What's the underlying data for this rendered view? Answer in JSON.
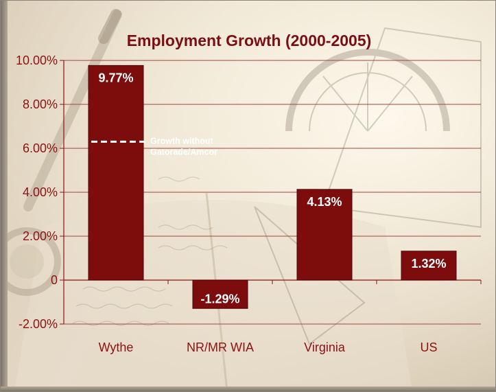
{
  "chart_data": {
    "type": "bar",
    "title": "Employment Growth (2000-2005)",
    "categories": [
      "Wythe",
      "NR/MR WIA",
      "Virginia",
      "US"
    ],
    "values": [
      9.77,
      -1.29,
      4.13,
      1.32
    ],
    "data_labels": [
      "9.77%",
      "-1.29%",
      "4.13%",
      "1.32%"
    ],
    "ylim": [
      -2,
      10
    ],
    "yticks": [
      10,
      8,
      6,
      4,
      2,
      0,
      -2
    ],
    "ytick_labels": [
      "10.00%",
      "8.00%",
      "6.00%",
      "4.00%",
      "2.00%",
      "0",
      "-2.00%"
    ],
    "grid": true,
    "legend": "none",
    "annotation": {
      "category": "Wythe",
      "value": 6.3,
      "line_style": "dashed",
      "lines": [
        "Growth without",
        "Gatorade/Amcor"
      ]
    },
    "colors": {
      "bar": "#7d0d0d",
      "bar_stroke": "#4a0606",
      "text": "#8b1212",
      "title": "#7a0f13",
      "gridline": "#a4453f",
      "axis": "#8b1212",
      "annotation": "#ffffff"
    }
  }
}
